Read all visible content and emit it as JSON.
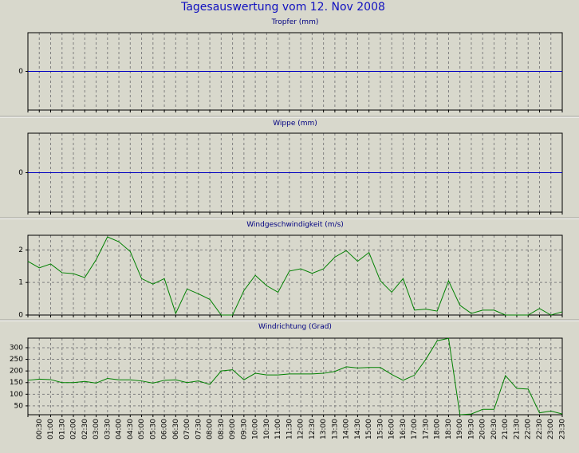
{
  "title": "Tagesauswertung vom 12. Nov 2008",
  "chart_data": [
    {
      "type": "line",
      "title": "Tropfer (mm)",
      "ylim": [
        -1,
        1
      ],
      "yticks": [
        0
      ],
      "grid": true,
      "series": [
        {
          "color": "#0000c0",
          "values": [
            0,
            0,
            0,
            0,
            0,
            0,
            0,
            0,
            0,
            0,
            0,
            0,
            0,
            0,
            0,
            0,
            0,
            0,
            0,
            0,
            0,
            0,
            0,
            0,
            0,
            0,
            0,
            0,
            0,
            0,
            0,
            0,
            0,
            0,
            0,
            0,
            0,
            0,
            0,
            0,
            0,
            0,
            0,
            0,
            0,
            0,
            0,
            0
          ]
        }
      ]
    },
    {
      "type": "line",
      "title": "Wippe (mm)",
      "ylim": [
        -1,
        1
      ],
      "yticks": [
        0
      ],
      "grid": true,
      "series": [
        {
          "color": "#0000c0",
          "values": [
            0,
            0,
            0,
            0,
            0,
            0,
            0,
            0,
            0,
            0,
            0,
            0,
            0,
            0,
            0,
            0,
            0,
            0,
            0,
            0,
            0,
            0,
            0,
            0,
            0,
            0,
            0,
            0,
            0,
            0,
            0,
            0,
            0,
            0,
            0,
            0,
            0,
            0,
            0,
            0,
            0,
            0,
            0,
            0,
            0,
            0,
            0,
            0
          ]
        }
      ]
    },
    {
      "type": "line",
      "title": "Windgeschwindigkeit (m/s)",
      "ylim": [
        0,
        2.45
      ],
      "yticks": [
        0,
        1,
        2
      ],
      "grid": true,
      "series": [
        {
          "color": "#008000",
          "values": [
            1.65,
            1.45,
            1.57,
            1.3,
            1.27,
            1.15,
            1.7,
            2.4,
            2.25,
            1.95,
            1.12,
            0.95,
            1.12,
            0.05,
            0.8,
            0.65,
            0.48,
            0,
            0,
            0.75,
            1.22,
            0.9,
            0.7,
            1.35,
            1.42,
            1.28,
            1.42,
            1.78,
            1.98,
            1.65,
            1.92,
            1.05,
            0.7,
            1.12,
            0.15,
            0.18,
            0.12,
            1.05,
            0.3,
            0.05,
            0.15,
            0.15,
            0,
            0,
            0,
            0.2,
            0,
            0.1
          ]
        }
      ]
    },
    {
      "type": "line",
      "title": "Windrichtung (Grad)",
      "ylim": [
        12,
        341
      ],
      "yticks": [
        50,
        100,
        150,
        200,
        250,
        300
      ],
      "grid": true,
      "categories": [
        null,
        "00:30",
        "01:00",
        "01:30",
        "02:00",
        "02:30",
        "03:00",
        "03:30",
        "04:00",
        "04:30",
        "05:00",
        "05:30",
        "06:00",
        "06:30",
        "07:00",
        "07:30",
        "08:00",
        "08:30",
        "09:00",
        "09:30",
        "10:00",
        "10:30",
        "11:00",
        "11:30",
        "12:00",
        "12:30",
        "13:00",
        "13:30",
        "14:00",
        "14:30",
        "15:00",
        "15:30",
        "16:00",
        "16:30",
        "17:00",
        "17:30",
        "18:00",
        "18:30",
        "19:00",
        "19:30",
        "20:00",
        "20:30",
        "21:00",
        "21:30",
        "22:00",
        "22:30",
        "23:00",
        "23:30"
      ],
      "series": [
        {
          "color": "#008000",
          "values": [
            160,
            165,
            163,
            150,
            150,
            155,
            148,
            168,
            162,
            162,
            157,
            148,
            160,
            162,
            150,
            157,
            142,
            200,
            205,
            162,
            190,
            183,
            183,
            187,
            187,
            187,
            190,
            198,
            218,
            213,
            215,
            215,
            185,
            160,
            182,
            250,
            330,
            340,
            12,
            15,
            35,
            35,
            180,
            125,
            122,
            20,
            28,
            15
          ]
        }
      ]
    }
  ]
}
